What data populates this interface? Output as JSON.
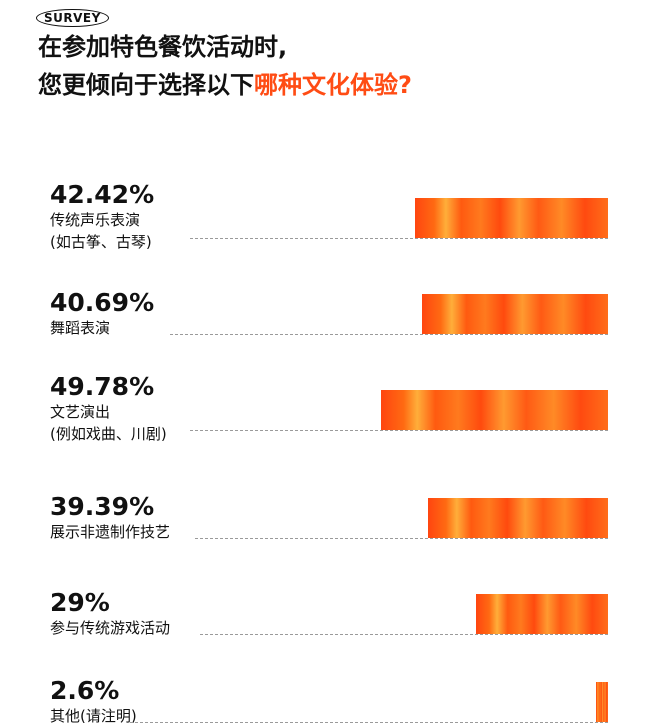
{
  "header": {
    "badge": "SURVEY",
    "title_line1": "在参加特色餐饮活动时,",
    "title_line2_plain": "您更倾向于选择以下",
    "title_line2_accent": "哪种文化体验?"
  },
  "colors": {
    "accent": "#ff4c14",
    "bar": "#ff6a12",
    "dash": "#9a9a9a"
  },
  "chart_data": {
    "type": "bar",
    "orientation": "horizontal",
    "categories": [
      "传统声乐表演 (如古筝、古琴)",
      "舞蹈表演",
      "文艺演出 (例如戏曲、川剧)",
      "展示非遗制作技艺",
      "参与传统游戏活动",
      "其他 (请注明)"
    ],
    "values": [
      42.42,
      40.69,
      49.78,
      39.39,
      29,
      2.6
    ],
    "value_labels": [
      "42.42%",
      "40.69%",
      "49.78%",
      "39.39%",
      "29%",
      "2.6%"
    ],
    "label_lines": [
      [
        "传统声乐表演",
        "(如古筝、古琴)"
      ],
      [
        "舞蹈表演"
      ],
      [
        "文艺演出",
        "(例如戏曲、川剧)"
      ],
      [
        "展示非遗制作技艺"
      ],
      [
        "参与传统游戏活动"
      ],
      [
        "其他(请注明)"
      ]
    ],
    "xlim": [
      0,
      100
    ]
  }
}
